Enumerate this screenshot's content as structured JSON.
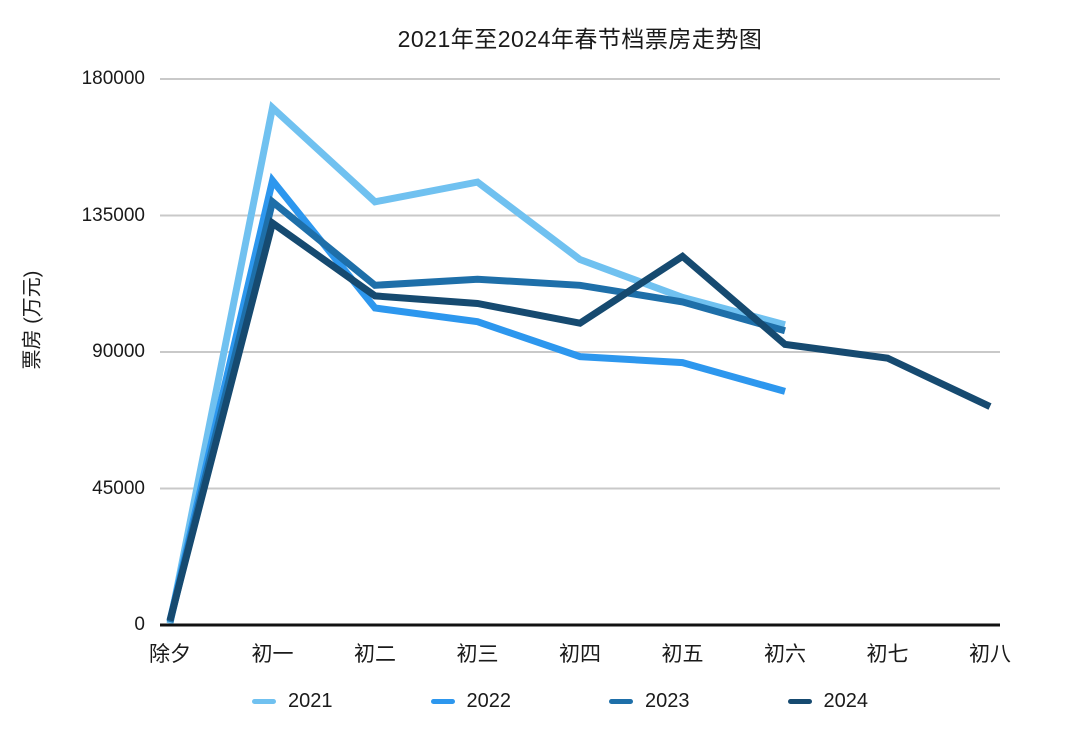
{
  "title": "2021年至2024年春节档票房走势图",
  "chart_data": {
    "type": "line",
    "title": "2021年至2024年春节档票房走势图",
    "xlabel": "",
    "ylabel": "票房 (万元)",
    "ylim": [
      0,
      180000
    ],
    "yticks": [
      0,
      45000,
      90000,
      135000,
      180000
    ],
    "grid": true,
    "legend_position": "bottom",
    "categories": [
      "除夕",
      "初一",
      "初二",
      "初三",
      "初四",
      "初五",
      "初六",
      "初七",
      "初八"
    ],
    "series": [
      {
        "name": "2021",
        "color": "#70C1F0",
        "values": [
          500,
          170500,
          139500,
          146000,
          120500,
          108000,
          99000
        ]
      },
      {
        "name": "2022",
        "color": "#2D97EE",
        "values": [
          1500,
          146500,
          104500,
          100000,
          88500,
          86500,
          77000
        ]
      },
      {
        "name": "2023",
        "color": "#1E6FA9",
        "values": [
          1000,
          139500,
          112000,
          114000,
          112000,
          106500,
          97000
        ]
      },
      {
        "name": "2024",
        "color": "#164A70",
        "values": [
          1500,
          132500,
          108500,
          106000,
          99500,
          121500,
          92500,
          88000,
          72000
        ]
      }
    ]
  },
  "colors": {
    "gridline": "#C9C9C9",
    "axis": "#111111",
    "text": "#1a1a1a",
    "background": "#ffffff"
  }
}
